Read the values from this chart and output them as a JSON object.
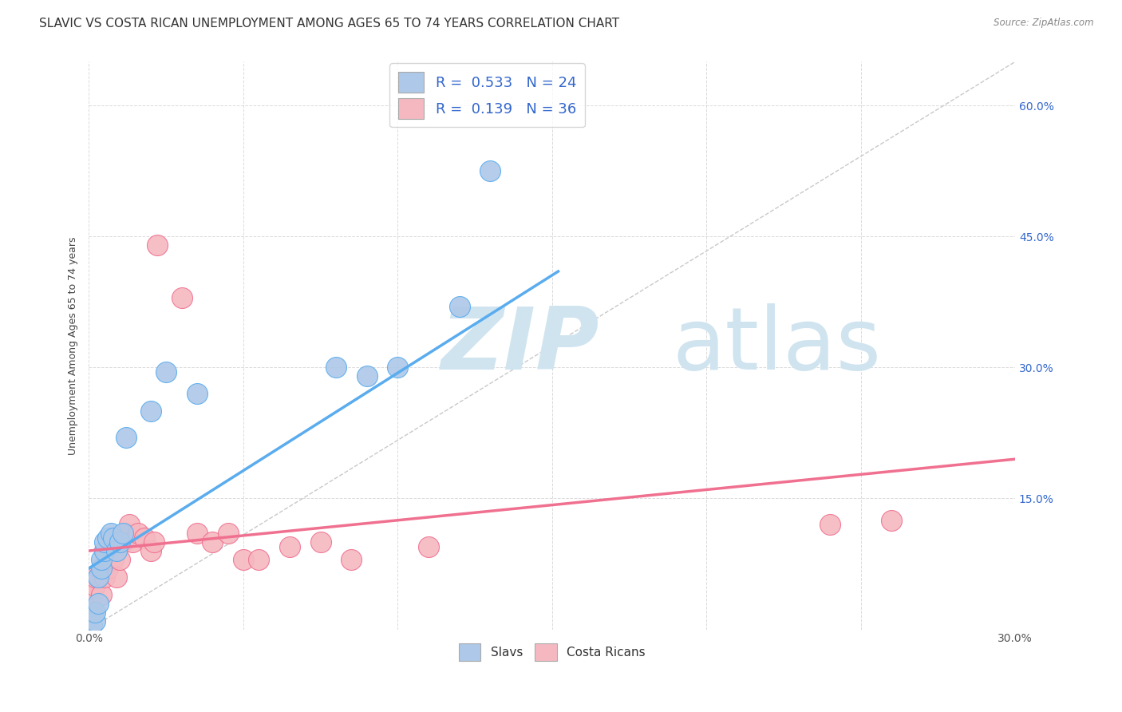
{
  "title": "SLAVIC VS COSTA RICAN UNEMPLOYMENT AMONG AGES 65 TO 74 YEARS CORRELATION CHART",
  "source": "Source: ZipAtlas.com",
  "ylabel": "Unemployment Among Ages 65 to 74 years",
  "xlim": [
    0.0,
    0.3
  ],
  "ylim": [
    0.0,
    0.65
  ],
  "xticks": [
    0.0,
    0.05,
    0.1,
    0.15,
    0.2,
    0.25,
    0.3
  ],
  "yticks": [
    0.0,
    0.15,
    0.3,
    0.45,
    0.6
  ],
  "right_ytick_labels": [
    "",
    "15.0%",
    "30.0%",
    "45.0%",
    "60.0%"
  ],
  "xtick_labels_show": [
    "0.0%",
    "30.0%"
  ],
  "slavs_R": 0.533,
  "slavs_N": 24,
  "costa_R": 0.139,
  "costa_N": 36,
  "slavs_color": "#adc8e8",
  "costa_color": "#f5b8c0",
  "slavs_line_color": "#5aacee",
  "costa_line_color": "#f07090",
  "legend_text_color": "#3366cc",
  "watermark_color": "#d0e4f0",
  "grid_color": "#cccccc",
  "bg_color": "#ffffff",
  "title_fontsize": 11,
  "axis_label_fontsize": 9,
  "tick_fontsize": 10,
  "legend_fontsize": 13,
  "slavs_x": [
    0.001,
    0.002,
    0.002,
    0.003,
    0.003,
    0.004,
    0.004,
    0.005,
    0.005,
    0.006,
    0.007,
    0.008,
    0.009,
    0.01,
    0.011,
    0.012,
    0.02,
    0.025,
    0.035,
    0.08,
    0.09,
    0.1,
    0.12,
    0.13
  ],
  "slavs_y": [
    0.005,
    0.01,
    0.02,
    0.03,
    0.06,
    0.07,
    0.08,
    0.09,
    0.1,
    0.105,
    0.11,
    0.105,
    0.09,
    0.1,
    0.11,
    0.22,
    0.25,
    0.295,
    0.27,
    0.3,
    0.29,
    0.3,
    0.37,
    0.525
  ],
  "costa_x": [
    0.001,
    0.001,
    0.002,
    0.002,
    0.003,
    0.004,
    0.004,
    0.005,
    0.005,
    0.006,
    0.006,
    0.007,
    0.008,
    0.009,
    0.01,
    0.011,
    0.012,
    0.013,
    0.014,
    0.016,
    0.018,
    0.02,
    0.021,
    0.022,
    0.03,
    0.035,
    0.04,
    0.045,
    0.05,
    0.055,
    0.065,
    0.075,
    0.085,
    0.11,
    0.24,
    0.26
  ],
  "costa_y": [
    0.02,
    0.04,
    0.05,
    0.06,
    0.06,
    0.04,
    0.07,
    0.06,
    0.09,
    0.07,
    0.09,
    0.08,
    0.08,
    0.06,
    0.08,
    0.1,
    0.11,
    0.12,
    0.1,
    0.11,
    0.105,
    0.09,
    0.1,
    0.44,
    0.38,
    0.11,
    0.1,
    0.11,
    0.08,
    0.08,
    0.095,
    0.1,
    0.08,
    0.095,
    0.12,
    0.125
  ],
  "diag_color": "#bbbbbb",
  "slavs_trend_x": [
    0.0,
    0.152
  ],
  "slavs_trend_y": [
    0.07,
    0.41
  ],
  "costa_trend_x": [
    0.0,
    0.3
  ],
  "costa_trend_y": [
    0.09,
    0.195
  ]
}
